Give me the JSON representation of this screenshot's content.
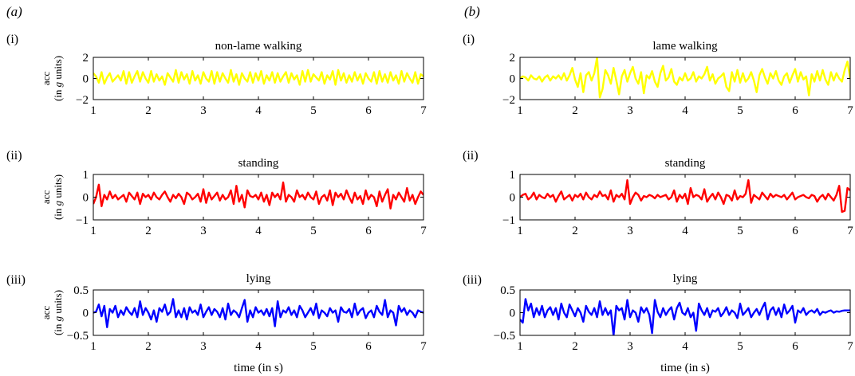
{
  "panels": [
    {
      "label": "(a)",
      "ylabel_line1": "acc",
      "ylabel_line2_pre": "(in ",
      "ylabel_line2_g": "g",
      "ylabel_line2_post": " units)"
    },
    {
      "label": "(b)"
    }
  ],
  "chart_data": [
    {
      "type": "line",
      "panel": "(a)",
      "row": "(i)",
      "title": "non-lame walking",
      "color": "#ffff00",
      "xlim": [
        1,
        7
      ],
      "ylim": [
        -2,
        2
      ],
      "xticks": [
        1,
        2,
        3,
        4,
        5,
        6,
        7
      ],
      "yticks": [
        -2,
        0,
        2
      ],
      "series": [
        {
          "x_start": 1.0,
          "x_step": 0.05,
          "values": [
            0.5,
            0.2,
            -0.4,
            0.6,
            -0.5,
            0.1,
            0.5,
            -0.3,
            0.0,
            0.3,
            -0.2,
            0.7,
            -0.5,
            0.6,
            -0.4,
            0.2,
            0.7,
            -0.3,
            0.6,
            0.0,
            -0.4,
            0.7,
            -0.3,
            0.4,
            -0.2,
            0.2,
            -0.6,
            0.5,
            0.1,
            -0.3,
            0.8,
            -0.4,
            0.6,
            -0.1,
            0.4,
            -0.5,
            0.7,
            -0.2,
            0.3,
            -0.5,
            0.6,
            0.0,
            -0.3,
            0.7,
            -0.5,
            0.6,
            -0.3,
            0.5,
            0.0,
            -0.4,
            0.8,
            -0.3,
            0.4,
            -0.6,
            0.5,
            0.0,
            -0.3,
            0.6,
            -0.4,
            0.5,
            -0.2,
            0.7,
            -0.5,
            0.3,
            -0.2,
            0.6,
            -0.4,
            0.5,
            -0.3,
            0.2,
            0.6,
            -0.4,
            0.5,
            -0.1,
            0.3,
            -0.6,
            0.7,
            -0.3,
            0.8,
            -0.3,
            0.4,
            0.1,
            -0.2,
            0.6,
            -0.5,
            0.3,
            -0.1,
            0.7,
            -0.6,
            0.8,
            -0.2,
            0.5,
            -0.4,
            0.3,
            -0.3,
            0.6,
            -0.2,
            0.4,
            -0.5,
            0.5,
            0.0,
            -0.3,
            0.6,
            -0.5,
            0.7,
            -0.3,
            0.4,
            -0.4,
            0.6,
            -0.2,
            0.3,
            -0.5,
            0.7,
            -0.3,
            0.5,
            0.0,
            -0.4,
            0.6,
            -0.5,
            0.4,
            0.2
          ]
        }
      ]
    },
    {
      "type": "line",
      "panel": "(b)",
      "row": "(i)",
      "title": "lame walking",
      "color": "#ffff00",
      "xlim": [
        1,
        7
      ],
      "ylim": [
        -2,
        2
      ],
      "xticks": [
        1,
        2,
        3,
        4,
        5,
        6,
        7
      ],
      "yticks": [
        -2,
        0,
        2
      ],
      "series": [
        {
          "x_start": 1.0,
          "x_step": 0.05,
          "values": [
            0.0,
            0.2,
            0.1,
            -0.2,
            0.3,
            0.0,
            -0.1,
            0.2,
            -0.3,
            0.1,
            0.3,
            -0.2,
            0.2,
            0.0,
            0.3,
            -0.1,
            0.5,
            -0.2,
            0.3,
            1.0,
            -0.1,
            -0.8,
            0.5,
            -1.3,
            0.3,
            0.6,
            -0.2,
            0.5,
            2.0,
            -1.8,
            -1.0,
            0.8,
            0.3,
            -0.5,
            1.0,
            -0.2,
            -1.5,
            0.2,
            0.8,
            -0.3,
            0.5,
            1.1,
            0.0,
            -0.5,
            0.6,
            -1.4,
            0.3,
            0.0,
            0.7,
            -0.3,
            -0.8,
            0.5,
            1.2,
            -0.2,
            0.1,
            0.9,
            -0.3,
            -0.6,
            0.1,
            -0.2,
            0.5,
            -0.2,
            0.0,
            0.6,
            -0.3,
            0.2,
            0.0,
            0.4,
            1.1,
            -0.2,
            0.4,
            -0.5,
            0.0,
            0.2,
            0.5,
            -0.8,
            -1.2,
            0.6,
            -0.3,
            0.8,
            -0.4,
            0.5,
            -0.3,
            0.0,
            0.6,
            -0.2,
            -1.3,
            0.3,
            0.9,
            0.1,
            -0.5,
            0.5,
            0.0,
            0.7,
            -0.2,
            -0.6,
            0.2,
            0.5,
            -0.4,
            0.3,
            0.9,
            -0.3,
            0.6,
            -0.1,
            0.2,
            -1.6,
            0.4,
            -0.3,
            0.7,
            -0.2,
            0.8,
            -0.1,
            -0.6,
            0.6,
            -0.2,
            0.5,
            0.0,
            -0.3,
            0.8,
            1.6,
            0.0
          ]
        }
      ]
    },
    {
      "type": "line",
      "panel": "(a)",
      "row": "(ii)",
      "title": "standing",
      "color": "#ff0000",
      "xlim": [
        1,
        7
      ],
      "ylim": [
        -1,
        1
      ],
      "xticks": [
        1,
        2,
        3,
        4,
        5,
        6,
        7
      ],
      "yticks": [
        -1,
        0,
        1
      ],
      "series": [
        {
          "x_start": 1.0,
          "x_step": 0.05,
          "values": [
            -0.3,
            0.0,
            0.55,
            -0.4,
            0.1,
            -0.1,
            0.25,
            -0.05,
            0.1,
            -0.1,
            0.0,
            0.1,
            -0.2,
            0.2,
            0.05,
            -0.1,
            0.2,
            -0.3,
            0.15,
            0.0,
            0.1,
            -0.1,
            0.2,
            0.0,
            -0.1,
            0.1,
            0.25,
            0.0,
            -0.2,
            0.1,
            -0.05,
            0.15,
            0.0,
            -0.3,
            0.2,
            0.1,
            -0.1,
            0.0,
            0.15,
            -0.2,
            0.35,
            -0.25,
            0.2,
            -0.1,
            0.05,
            0.2,
            -0.15,
            0.1,
            -0.1,
            0.0,
            0.3,
            -0.3,
            0.5,
            -0.2,
            0.1,
            -0.45,
            0.3,
            0.05,
            0.0,
            0.1,
            -0.1,
            0.2,
            -0.2,
            0.1,
            -0.35,
            0.2,
            0.0,
            0.15,
            -0.1,
            0.65,
            -0.2,
            0.1,
            0.0,
            -0.2,
            0.3,
            0.0,
            0.1,
            -0.1,
            0.2,
            0.0,
            -0.1,
            0.25,
            -0.3,
            0.0,
            0.1,
            -0.15,
            0.3,
            -0.35,
            0.2,
            0.0,
            0.15,
            -0.1,
            0.3,
            0.0,
            -0.25,
            0.2,
            -0.1,
            0.05,
            -0.3,
            0.3,
            -0.1,
            0.1,
            0.0,
            -0.4,
            0.25,
            -0.2,
            0.1,
            0.35,
            -0.5,
            0.1,
            -0.1,
            0.2,
            0.0,
            -0.2,
            0.4,
            -0.15,
            0.1,
            -0.3,
            0.0,
            0.25,
            0.1
          ]
        }
      ]
    },
    {
      "type": "line",
      "panel": "(b)",
      "row": "(ii)",
      "title": "standing",
      "color": "#ff0000",
      "xlim": [
        1,
        7
      ],
      "ylim": [
        -1,
        1
      ],
      "xticks": [
        1,
        2,
        3,
        4,
        5,
        6,
        7
      ],
      "yticks": [
        -1,
        0,
        1
      ],
      "series": [
        {
          "x_start": 1.0,
          "x_step": 0.05,
          "values": [
            0.0,
            0.1,
            0.15,
            -0.1,
            0.0,
            0.2,
            -0.1,
            0.1,
            0.0,
            -0.05,
            0.15,
            0.0,
            0.1,
            -0.2,
            0.05,
            0.25,
            -0.1,
            0.0,
            0.1,
            -0.15,
            0.1,
            0.0,
            0.15,
            -0.1,
            0.2,
            0.0,
            -0.1,
            0.1,
            0.0,
            0.25,
            0.05,
            0.1,
            -0.1,
            0.3,
            -0.2,
            0.1,
            0.0,
            0.15,
            -0.1,
            0.75,
            -0.3,
            0.0,
            0.2,
            0.1,
            -0.15,
            0.05,
            0.0,
            0.1,
            0.05,
            -0.05,
            0.1,
            0.0,
            0.05,
            0.1,
            -0.1,
            0.0,
            0.3,
            -0.2,
            0.1,
            -0.05,
            0.15,
            -0.3,
            0.4,
            0.0,
            0.1,
            0.05,
            -0.1,
            0.35,
            -0.2,
            0.0,
            0.15,
            -0.1,
            0.2,
            0.0,
            -0.3,
            0.1,
            0.05,
            -0.15,
            0.3,
            -0.1,
            0.05,
            0.0,
            0.15,
            0.75,
            -0.25,
            0.1,
            0.0,
            -0.1,
            0.2,
            0.05,
            -0.1,
            0.15,
            0.0,
            0.1,
            0.05,
            0.0,
            0.1,
            -0.1,
            0.05,
            0.2,
            -0.1,
            0.0,
            0.05,
            0.1,
            0.0,
            -0.05,
            0.1,
            0.05,
            -0.2,
            0.0,
            0.1,
            -0.1,
            0.15,
            0.0,
            -0.15,
            0.1,
            0.5,
            -0.65,
            -0.6,
            0.4,
            0.3
          ]
        }
      ]
    },
    {
      "type": "line",
      "panel": "(a)",
      "row": "(iii)",
      "title": "lying",
      "color": "#0000ff",
      "xlim": [
        1,
        7
      ],
      "ylim": [
        -0.5,
        0.5
      ],
      "xticks": [
        1,
        2,
        3,
        4,
        5,
        6,
        7
      ],
      "yticks": [
        -0.5,
        0,
        0.5
      ],
      "series": [
        {
          "x_start": 1.0,
          "x_step": 0.05,
          "values": [
            0.0,
            0.02,
            0.18,
            -0.08,
            0.15,
            -0.32,
            0.08,
            0.0,
            0.15,
            -0.1,
            0.05,
            -0.05,
            0.12,
            0.02,
            -0.05,
            0.1,
            -0.1,
            0.25,
            -0.05,
            0.1,
            0.0,
            -0.15,
            0.05,
            -0.2,
            0.1,
            0.02,
            0.18,
            -0.05,
            0.02,
            0.3,
            -0.1,
            0.05,
            -0.1,
            0.1,
            -0.15,
            0.12,
            0.0,
            0.05,
            -0.05,
            0.18,
            -0.1,
            0.02,
            0.12,
            -0.05,
            0.08,
            0.02,
            -0.1,
            0.1,
            -0.15,
            0.2,
            -0.05,
            0.05,
            0.0,
            -0.1,
            0.1,
            0.28,
            -0.2,
            0.05,
            -0.1,
            0.12,
            0.0,
            0.05,
            -0.05,
            0.08,
            -0.08,
            0.1,
            -0.3,
            0.25,
            -0.1,
            0.05,
            0.0,
            0.12,
            -0.05,
            0.05,
            -0.1,
            0.15,
            0.05,
            -0.1,
            0.0,
            0.1,
            -0.05,
            0.2,
            -0.12,
            0.05,
            0.0,
            -0.08,
            0.1,
            0.0,
            0.05,
            -0.2,
            0.12,
            0.02,
            0.0,
            0.08,
            -0.1,
            0.2,
            -0.05,
            0.05,
            0.1,
            -0.12,
            0.0,
            0.05,
            -0.1,
            0.15,
            0.02,
            -0.05,
            0.28,
            -0.1,
            0.05,
            0.0,
            -0.28,
            0.15,
            0.02,
            0.1,
            -0.05,
            0.05,
            0.0,
            -0.1,
            0.05,
            0.02,
            0.0
          ]
        }
      ]
    },
    {
      "type": "line",
      "panel": "(b)",
      "row": "(iii)",
      "title": "lying",
      "color": "#0000ff",
      "xlim": [
        1,
        7
      ],
      "ylim": [
        -0.5,
        0.5
      ],
      "xticks": [
        1,
        2,
        3,
        4,
        5,
        6,
        7
      ],
      "yticks": [
        -0.5,
        0,
        0.5
      ],
      "series": [
        {
          "x_start": 1.0,
          "x_step": 0.05,
          "values": [
            -0.15,
            -0.22,
            0.3,
            0.05,
            0.2,
            -0.1,
            0.1,
            -0.05,
            0.15,
            -0.1,
            0.05,
            0.12,
            -0.05,
            0.1,
            -0.15,
            0.2,
            0.0,
            -0.1,
            0.18,
            0.05,
            -0.08,
            0.1,
            0.0,
            -0.2,
            0.15,
            0.02,
            -0.05,
            0.1,
            -0.1,
            0.25,
            -0.05,
            0.1,
            -0.05,
            0.05,
            -0.5,
            0.15,
            0.05,
            0.1,
            -0.15,
            0.28,
            -0.1,
            0.05,
            0.0,
            -0.2,
            0.12,
            0.0,
            0.1,
            -0.05,
            -0.45,
            0.28,
            0.02,
            -0.1,
            0.1,
            -0.05,
            0.05,
            0.12,
            -0.15,
            0.1,
            0.22,
            0.0,
            -0.05,
            0.1,
            -0.1,
            0.0,
            -0.4,
            0.2,
            0.05,
            -0.05,
            0.1,
            -0.1,
            0.05,
            0.02,
            0.1,
            -0.08,
            0.0,
            0.12,
            -0.05,
            0.05,
            0.0,
            -0.12,
            0.2,
            -0.05,
            0.02,
            0.1,
            -0.1,
            0.0,
            0.08,
            -0.05,
            0.1,
            0.22,
            -0.15,
            0.05,
            0.12,
            -0.05,
            0.1,
            -0.1,
            0.18,
            -0.02,
            0.05,
            0.15,
            -0.22,
            0.05,
            0.0,
            0.1,
            -0.05,
            0.02,
            0.05,
            0.0,
            0.08,
            -0.05,
            0.02,
            0.0,
            0.03,
            0.05,
            0.0,
            0.03,
            0.02,
            0.04,
            0.05,
            0.05,
            0.05
          ]
        }
      ]
    }
  ],
  "xlabel": "time (in s)"
}
